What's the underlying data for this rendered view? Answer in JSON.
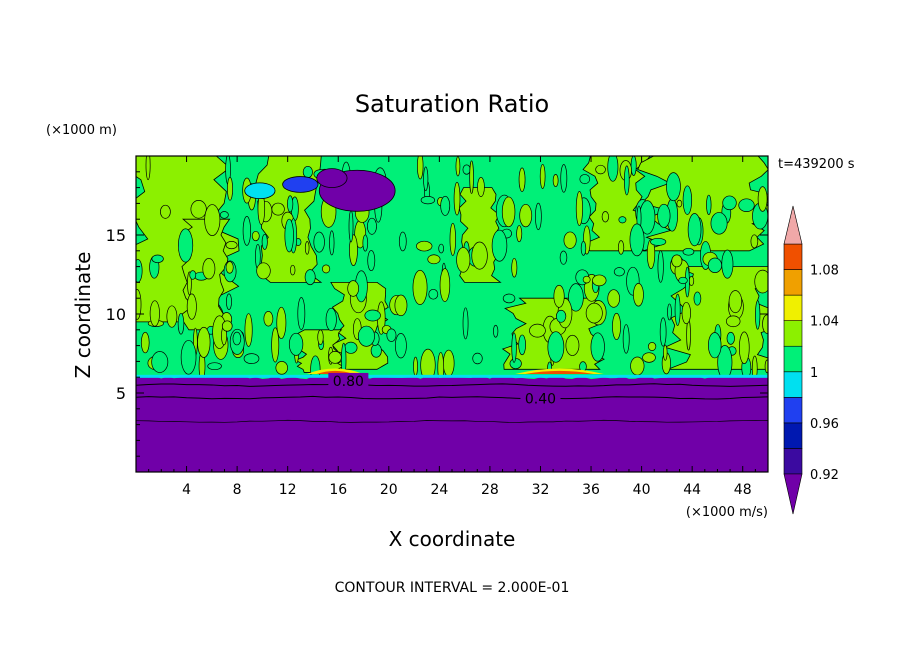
{
  "chart_data": {
    "type": "heatmap",
    "title": "Saturation Ratio",
    "xlabel": "X coordinate",
    "ylabel": "Z coordinate",
    "x_unit": "(×1000 m/s)",
    "y_unit": "(×1000 m)",
    "time_label": "t=439200 s",
    "contour_interval": "CONTOUR INTERVAL = 2.000E-01",
    "xlim": [
      0,
      50
    ],
    "ylim": [
      0,
      20
    ],
    "x_ticks": [
      4,
      8,
      12,
      16,
      20,
      24,
      28,
      32,
      36,
      40,
      44,
      48
    ],
    "y_ticks": [
      5,
      10,
      15
    ],
    "contour_labels": [
      {
        "text": "0.80",
        "x": 16.8,
        "z": 5.7
      },
      {
        "text": "0.40",
        "x": 32.0,
        "z": 4.6
      }
    ],
    "colorbar": {
      "levels": [
        0.92,
        0.94,
        0.96,
        0.98,
        1.0,
        1.02,
        1.04,
        1.06,
        1.08,
        1.1
      ],
      "tick_labels": [
        "0.92",
        "0.96",
        "1",
        "1.04",
        "1.08"
      ],
      "tick_values": [
        0.92,
        0.96,
        1.0,
        1.04,
        1.08
      ],
      "colors": [
        "#7000a8",
        "#3b0aa0",
        "#0018b0",
        "#2040f0",
        "#00e0f0",
        "#00f078",
        "#8cf000",
        "#f0f000",
        "#f0a000",
        "#f05000",
        "#f02020",
        "#f0a8a8"
      ]
    },
    "regions": {
      "dry_layer_top_z": 6.0,
      "cloud_layer_base_z": 6.3,
      "supersat_patches": [
        {
          "x0": 13.5,
          "x1": 18.0,
          "peak": 1.04
        },
        {
          "x0": 30.0,
          "x1": 37.0,
          "peak": 1.06
        }
      ]
    }
  }
}
